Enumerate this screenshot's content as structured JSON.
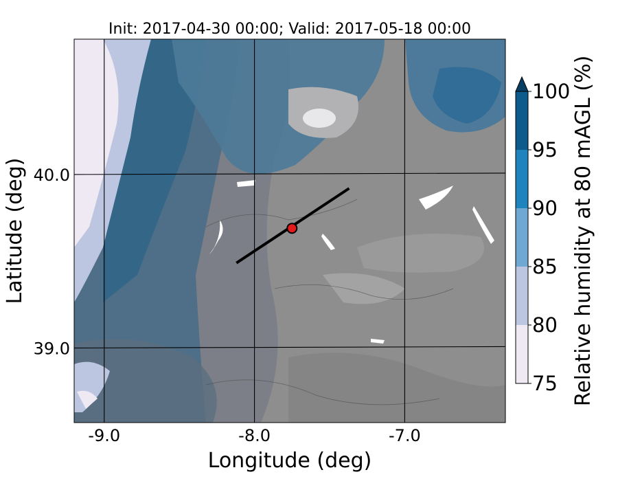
{
  "title": "Init: 2017-04-30 00:00; Valid: 2017-05-18 00:00",
  "xlabel": "Longitude (deg)",
  "ylabel": "Latitude (deg)",
  "xticks": [
    {
      "value": -9.0,
      "label": "-9.0"
    },
    {
      "value": -8.0,
      "label": "-8.0"
    },
    {
      "value": -7.0,
      "label": "-7.0"
    }
  ],
  "yticks": [
    {
      "value": 40.0,
      "label": "40.0"
    },
    {
      "value": 39.0,
      "label": "39.0"
    }
  ],
  "map": {
    "lon_range": [
      -9.2,
      -6.33
    ],
    "lat_range": [
      38.57,
      40.78
    ],
    "transect": {
      "start": [
        -8.12,
        39.49
      ],
      "end": [
        -7.37,
        39.92
      ]
    },
    "marker": {
      "lon": -7.75,
      "lat": 39.69,
      "color": "#e41a1c"
    }
  },
  "colorbar": {
    "label": "Relative humidity at 80 mAGL (%)",
    "ticks": [
      "75",
      "80",
      "85",
      "90",
      "95",
      "100"
    ],
    "levels": [
      {
        "from": 75,
        "to": 80,
        "color": "#efe9f4"
      },
      {
        "from": 80,
        "to": 85,
        "color": "#bcc6e0"
      },
      {
        "from": 85,
        "to": 90,
        "color": "#6fa8d2"
      },
      {
        "from": 90,
        "to": 95,
        "color": "#1f84bd"
      },
      {
        "from": 95,
        "to": 100,
        "color": "#0d5a8c"
      }
    ],
    "extend_color": "#083e63"
  }
}
